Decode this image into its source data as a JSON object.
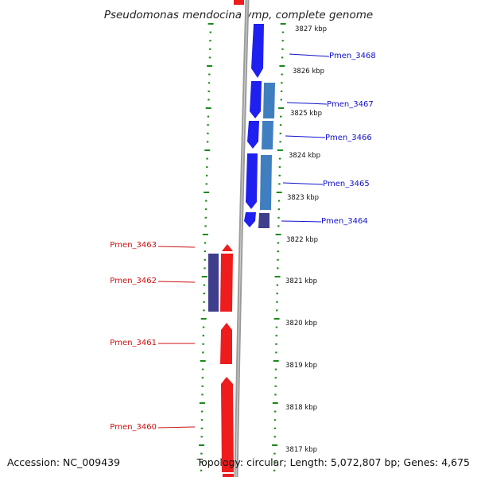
{
  "title": "Pseudomonas mendocina ymp, complete genome",
  "accession": "Accession: NC_009439",
  "summary": "Topology: circular; Length: 5,072,807 bp; Genes: 4,675",
  "colors": {
    "forward_gene": "#1f1ff0",
    "forward_gene_alt": "#3f7fbf",
    "reverse_gene": "#ee1c1c",
    "reverse_gene_alt": "#3e3e8c",
    "backbone": "#9a9a9a",
    "tick": "#1a8a1a",
    "label_forward": "#1010cc",
    "label_reverse": "#cc1010"
  },
  "kbp_labels": [
    "3827 kbp",
    "3826 kbp",
    "3825 kbp",
    "3824 kbp",
    "3823 kbp",
    "3822 kbp",
    "3821 kbp",
    "3820 kbp",
    "3819 kbp",
    "3818 kbp",
    "3817 kbp"
  ],
  "forward_genes": [
    {
      "label": "Pmen_3468"
    },
    {
      "label": "Pmen_3467"
    },
    {
      "label": "Pmen_3466"
    },
    {
      "label": "Pmen_3465"
    },
    {
      "label": "Pmen_3464"
    }
  ],
  "reverse_genes": [
    {
      "label": "Pmen_3463"
    },
    {
      "label": "Pmen_3462"
    },
    {
      "label": "Pmen_3461"
    },
    {
      "label": "Pmen_3460"
    }
  ]
}
